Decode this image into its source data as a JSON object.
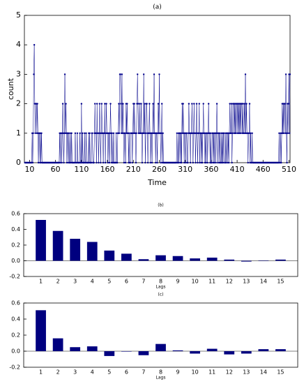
{
  "chart_data": [
    {
      "type": "line",
      "title": "(a)",
      "xlabel": "Time",
      "ylabel": "count",
      "x": [
        1,
        2,
        3,
        4,
        5,
        6,
        7,
        8,
        9,
        10,
        11,
        12,
        13,
        14,
        15,
        16,
        17,
        18,
        19,
        20,
        21,
        22,
        23,
        24,
        25,
        26,
        27,
        28,
        29,
        30,
        31,
        32,
        33,
        34,
        35,
        36,
        37,
        38,
        39,
        40,
        41,
        42,
        43,
        44,
        45,
        46,
        47,
        48,
        49,
        50,
        51,
        52,
        53,
        54,
        55,
        56,
        57,
        58,
        59,
        60,
        61,
        62,
        63,
        64,
        65,
        66,
        67,
        68,
        69,
        70,
        71,
        72,
        73,
        74,
        75,
        76,
        77,
        78,
        79,
        80,
        81,
        82,
        83,
        84,
        85,
        86,
        87,
        88,
        89,
        90,
        91,
        92,
        93,
        94,
        95,
        96,
        97,
        98,
        99,
        100,
        101,
        102,
        103,
        104,
        105,
        106,
        107,
        108,
        109,
        110,
        111,
        112,
        113,
        114,
        115,
        116,
        117,
        118,
        119,
        120,
        121,
        122,
        123,
        124,
        125,
        126,
        127,
        128,
        129,
        130,
        131,
        132,
        133,
        134,
        135,
        136,
        137,
        138,
        139,
        140,
        141,
        142,
        143,
        144,
        145,
        146,
        147,
        148,
        149,
        150,
        151,
        152,
        153,
        154,
        155,
        156,
        157,
        158,
        159,
        160,
        161,
        162,
        163,
        164,
        165,
        166,
        167,
        168,
        169,
        170,
        171,
        172,
        173,
        174,
        175,
        176,
        177,
        178,
        179,
        180,
        181,
        182,
        183,
        184,
        185,
        186,
        187,
        188,
        189,
        190,
        191,
        192,
        193,
        194,
        195,
        196,
        197,
        198,
        199,
        200,
        201,
        202,
        203,
        204,
        205,
        206,
        207,
        208,
        209,
        210,
        211,
        212,
        213,
        214,
        215,
        216,
        217,
        218,
        219,
        220,
        221,
        222,
        223,
        224,
        225,
        226,
        227,
        228,
        229,
        230,
        231,
        232,
        233,
        234,
        235,
        236,
        237,
        238,
        239,
        240,
        241,
        242,
        243,
        244,
        245,
        246,
        247,
        248,
        249,
        250,
        251,
        252,
        253,
        254,
        255,
        256,
        257,
        258,
        259,
        260,
        261,
        262,
        263,
        264,
        265,
        266,
        267,
        268,
        269,
        270,
        271,
        272,
        273,
        274,
        275,
        276,
        277,
        278,
        279,
        280,
        281,
        282,
        283,
        284,
        285,
        286,
        287,
        288,
        289,
        290,
        291,
        292,
        293,
        294,
        295,
        296,
        297,
        298,
        299,
        300,
        301,
        302,
        303,
        304,
        305,
        306,
        307,
        308,
        309,
        310,
        311,
        312,
        313,
        314,
        315,
        316,
        317,
        318,
        319,
        320,
        321,
        322,
        323,
        324,
        325,
        326,
        327,
        328,
        329,
        330,
        331,
        332,
        333,
        334,
        335,
        336,
        337,
        338,
        339,
        340,
        341,
        342,
        343,
        344,
        345,
        346,
        347,
        348,
        349,
        350,
        351,
        352,
        353,
        354,
        355,
        356,
        357,
        358,
        359,
        360,
        361,
        362,
        363,
        364,
        365,
        366,
        367,
        368,
        369,
        370,
        371,
        372,
        373,
        374,
        375,
        376,
        377,
        378,
        379,
        380,
        381,
        382,
        383,
        384,
        385,
        386,
        387,
        388,
        389,
        390,
        391,
        392,
        393,
        394,
        395,
        396,
        397,
        398,
        399,
        400,
        401,
        402,
        403,
        404,
        405,
        406,
        407,
        408,
        409,
        410,
        411,
        412,
        413,
        414,
        415,
        416,
        417,
        418,
        419,
        420,
        421,
        422,
        423,
        424,
        425,
        426,
        427,
        428,
        429,
        430,
        431,
        432,
        433,
        434,
        435,
        436,
        437,
        438,
        439,
        440,
        441,
        442,
        443,
        444,
        445,
        446,
        447,
        448,
        449,
        450,
        451,
        452,
        453,
        454,
        455,
        456,
        457,
        458,
        459,
        460,
        461,
        462,
        463,
        464,
        465,
        466,
        467,
        468,
        469,
        470,
        471,
        472,
        473,
        474,
        475,
        476,
        477,
        478,
        479,
        480,
        481,
        482,
        483,
        484,
        485,
        486,
        487,
        488,
        489,
        490,
        491,
        492,
        493,
        494,
        495,
        496,
        497,
        498,
        499,
        500,
        501,
        502,
        503,
        504,
        505,
        506,
        507,
        508,
        509,
        510,
        511,
        512
      ],
      "values": [
        0,
        0,
        0,
        0,
        0,
        0,
        0,
        0,
        0,
        0,
        0,
        0,
        0,
        0,
        1,
        0,
        1,
        3,
        4,
        2,
        1,
        2,
        2,
        1,
        2,
        1,
        0,
        1,
        1,
        0,
        1,
        0,
        1,
        0,
        0,
        0,
        0,
        0,
        0,
        0,
        0,
        0,
        0,
        0,
        0,
        0,
        0,
        0,
        0,
        0,
        0,
        0,
        0,
        0,
        0,
        0,
        0,
        0,
        0,
        0,
        0,
        0,
        0,
        0,
        0,
        0,
        0,
        1,
        0,
        1,
        1,
        0,
        1,
        2,
        1,
        0,
        1,
        3,
        1,
        2,
        1,
        0,
        1,
        1,
        0,
        1,
        0,
        0,
        1,
        0,
        1,
        0,
        0,
        0,
        0,
        0,
        0,
        1,
        0,
        0,
        0,
        1,
        0,
        0,
        0,
        0,
        1,
        0,
        0,
        2,
        0,
        1,
        0,
        0,
        0,
        1,
        0,
        0,
        1,
        0,
        0,
        0,
        0,
        1,
        0,
        1,
        0,
        0,
        0,
        1,
        1,
        0,
        0,
        0,
        1,
        2,
        1,
        1,
        0,
        2,
        1,
        1,
        0,
        1,
        2,
        1,
        0,
        1,
        2,
        1,
        1,
        0,
        1,
        1,
        2,
        0,
        1,
        2,
        1,
        1,
        0,
        1,
        1,
        0,
        1,
        2,
        1,
        0,
        1,
        0,
        0,
        1,
        0,
        0,
        0,
        0,
        1,
        0,
        0,
        1,
        1,
        2,
        1,
        3,
        3,
        2,
        1,
        3,
        1,
        2,
        1,
        0,
        1,
        1,
        0,
        2,
        1,
        2,
        1,
        1,
        0,
        1,
        0,
        0,
        1,
        1,
        1,
        0,
        1,
        2,
        1,
        2,
        1,
        1,
        0,
        1,
        2,
        3,
        2,
        1,
        1,
        2,
        1,
        1,
        2,
        1,
        0,
        1,
        1,
        3,
        1,
        2,
        0,
        1,
        2,
        2,
        1,
        0,
        1,
        1,
        2,
        1,
        0,
        1,
        1,
        0,
        1,
        2,
        1,
        3,
        1,
        1,
        0,
        1,
        1,
        0,
        1,
        2,
        1,
        3,
        1,
        1,
        0,
        1,
        2,
        0,
        1,
        0,
        0,
        0,
        0,
        0,
        0,
        0,
        0,
        0,
        0,
        0,
        0,
        0,
        0,
        0,
        0,
        0,
        0,
        0,
        0,
        0,
        0,
        0,
        0,
        0,
        0,
        1,
        0,
        0,
        1,
        0,
        1,
        1,
        0,
        1,
        0,
        2,
        1,
        2,
        1,
        0,
        1,
        1,
        0,
        1,
        1,
        0,
        0,
        1,
        2,
        1,
        1,
        0,
        1,
        1,
        2,
        1,
        0,
        1,
        2,
        1,
        1,
        0,
        1,
        2,
        1,
        0,
        1,
        1,
        2,
        0,
        1,
        1,
        0,
        1,
        0,
        1,
        2,
        1,
        1,
        0,
        1,
        0,
        1,
        1,
        0,
        1,
        2,
        1,
        1,
        0,
        1,
        0,
        0,
        1,
        1,
        0,
        1,
        0,
        1,
        1,
        0,
        1,
        2,
        1,
        0,
        1,
        1,
        0,
        1,
        0,
        0,
        1,
        0,
        1,
        0,
        1,
        1,
        0,
        0,
        1,
        0,
        1,
        1,
        0,
        1,
        0,
        1,
        2,
        1,
        1,
        2,
        0,
        1,
        2,
        2,
        1,
        2,
        1,
        2,
        1,
        2,
        2,
        1,
        2,
        1,
        2,
        1,
        2,
        1,
        2,
        2,
        1,
        2,
        1,
        1,
        2,
        1,
        3,
        1,
        2,
        1,
        1,
        0,
        1,
        1,
        2,
        0,
        1,
        0,
        0,
        1,
        0,
        0,
        0,
        0,
        0,
        0,
        0,
        0,
        0,
        0,
        0,
        0,
        0,
        0,
        0,
        0,
        0,
        0,
        0,
        0,
        0,
        0,
        0,
        0,
        0,
        0,
        0,
        0,
        0,
        0,
        0,
        0,
        0,
        0,
        0,
        0,
        0,
        0,
        0,
        0,
        0,
        0,
        0,
        0,
        0,
        0,
        0,
        0,
        0,
        0,
        0,
        1,
        0,
        0,
        1,
        0,
        1,
        2,
        1,
        2,
        1,
        2,
        2,
        1,
        3,
        1,
        0,
        2,
        1,
        2,
        3,
        1,
        3
      ],
      "color": "#00008b",
      "xlim": [
        0,
        512
      ],
      "xticks": [
        10,
        60,
        110,
        160,
        210,
        260,
        310,
        360,
        410,
        460,
        510
      ],
      "ylim": [
        0,
        5
      ],
      "yticks": [
        0,
        1,
        2,
        3,
        4,
        5
      ]
    },
    {
      "type": "bar",
      "title": "(b)",
      "xlabel": "Lags",
      "categories": [
        "1",
        "2",
        "3",
        "4",
        "5",
        "6",
        "7",
        "8",
        "9",
        "10",
        "11",
        "12",
        "13",
        "14",
        "15"
      ],
      "values": [
        0.52,
        0.38,
        0.28,
        0.24,
        0.13,
        0.09,
        0.02,
        0.07,
        0.06,
        0.03,
        0.04,
        0.015,
        -0.01,
        0.005,
        0.015
      ],
      "color": "#00007f",
      "ylim": [
        -0.2,
        0.6
      ],
      "yticks": [
        -0.2,
        {
          "value": 0,
          "label": "0.0"
        },
        0.2,
        0.4,
        0.6
      ]
    },
    {
      "type": "bar",
      "title": "(c)",
      "xlabel": "Lags",
      "categories": [
        "1",
        "2",
        "3",
        "4",
        "5",
        "6",
        "7",
        "8",
        "9",
        "10",
        "11",
        "12",
        "13",
        "14",
        "15"
      ],
      "values": [
        0.51,
        0.16,
        0.05,
        0.06,
        -0.06,
        -0.005,
        -0.05,
        0.09,
        0.01,
        -0.03,
        0.03,
        -0.04,
        -0.03,
        0.025,
        0.025
      ],
      "color": "#00007f",
      "ylim": [
        -0.2,
        0.6
      ],
      "yticks": [
        -0.2,
        {
          "value": 0,
          "label": "0.0"
        },
        0.2,
        0.4,
        0.6
      ]
    }
  ]
}
